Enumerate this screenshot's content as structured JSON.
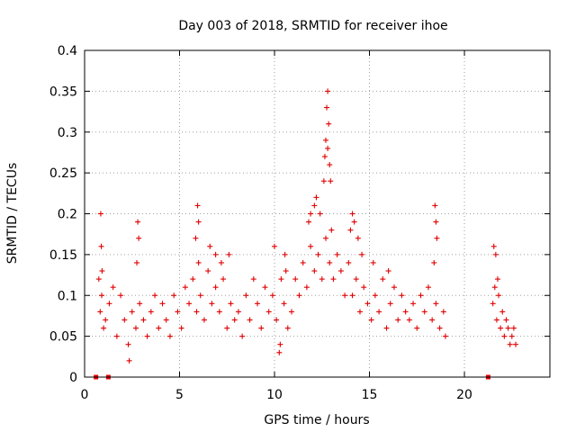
{
  "chart_data": {
    "type": "scatter",
    "title": "Day 003 of 2018, SRMTID for receiver ihoe",
    "xlabel": "GPS time / hours",
    "ylabel": "SRMTID / TECUs",
    "xlim": [
      0,
      24.5
    ],
    "ylim": [
      0,
      0.4
    ],
    "grid": true,
    "marker": "plus",
    "color": "#e00000",
    "x_ticks": [
      {
        "value": 0,
        "label": "0"
      },
      {
        "value": 5,
        "label": "5"
      },
      {
        "value": 10,
        "label": "10"
      },
      {
        "value": 15,
        "label": "15"
      },
      {
        "value": 20,
        "label": "20"
      }
    ],
    "y_ticks": [
      {
        "value": 0,
        "label": "0"
      },
      {
        "value": 0.05,
        "label": "0.05"
      },
      {
        "value": 0.1,
        "label": "0.1"
      },
      {
        "value": 0.15,
        "label": "0.15"
      },
      {
        "value": 0.2,
        "label": "0.2"
      },
      {
        "value": 0.25,
        "label": "0.25"
      },
      {
        "value": 0.3,
        "label": "0.3"
      },
      {
        "value": 0.35,
        "label": "0.35"
      },
      {
        "value": 0.4,
        "label": "0.4"
      }
    ],
    "series": [
      {
        "name": "SRMTID",
        "x": [
          0.6,
          1.25,
          21.25,
          0.75,
          0.82,
          0.9,
          1.0,
          1.1,
          1.3,
          1.5,
          1.7,
          1.9,
          2.1,
          2.3,
          2.5,
          2.7,
          2.9,
          3.1,
          3.3,
          3.5,
          3.7,
          3.9,
          0.85,
          0.88,
          0.92,
          2.35,
          2.8,
          2.85,
          2.75,
          4.1,
          4.3,
          4.5,
          4.7,
          4.9,
          5.1,
          5.3,
          5.5,
          5.7,
          5.9,
          6.0,
          6.1,
          6.3,
          6.5,
          6.7,
          6.9,
          7.1,
          7.3,
          7.5,
          7.7,
          7.9,
          5.95,
          6.0,
          5.85,
          6.6,
          6.9,
          7.2,
          7.6,
          8.1,
          8.3,
          8.5,
          8.7,
          8.9,
          9.1,
          9.3,
          9.5,
          9.7,
          9.9,
          10.1,
          10.3,
          10.5,
          10.7,
          10.9,
          10.0,
          10.25,
          10.35,
          10.55,
          10.6,
          11.1,
          11.3,
          11.5,
          11.7,
          11.9,
          12.1,
          12.3,
          12.5,
          12.7,
          12.9,
          13.1,
          13.3,
          13.5,
          13.7,
          13.9,
          11.8,
          11.9,
          12.1,
          12.2,
          12.4,
          12.6,
          12.65,
          12.7,
          12.75,
          12.8,
          12.85,
          12.9,
          12.95,
          13.0,
          12.8,
          14.1,
          14.3,
          14.5,
          14.7,
          14.9,
          15.1,
          15.3,
          15.5,
          15.7,
          15.9,
          16.1,
          16.3,
          16.5,
          16.7,
          16.9,
          14.0,
          14.1,
          14.2,
          14.4,
          14.6,
          15.2,
          16.0,
          17.1,
          17.3,
          17.5,
          17.7,
          17.9,
          18.1,
          18.3,
          18.5,
          18.7,
          18.9,
          19.0,
          18.45,
          18.5,
          18.55,
          18.4,
          21.5,
          21.6,
          21.7,
          21.8,
          21.9,
          22.0,
          22.1,
          22.2,
          22.3,
          22.4,
          22.5,
          22.6,
          22.7,
          21.55,
          21.65,
          21.75
        ],
        "y": [
          0.0,
          0.0,
          0.0,
          0.12,
          0.08,
          0.1,
          0.06,
          0.07,
          0.09,
          0.11,
          0.05,
          0.1,
          0.07,
          0.04,
          0.08,
          0.06,
          0.09,
          0.07,
          0.05,
          0.08,
          0.1,
          0.06,
          0.2,
          0.16,
          0.13,
          0.02,
          0.19,
          0.17,
          0.14,
          0.09,
          0.07,
          0.05,
          0.1,
          0.08,
          0.06,
          0.11,
          0.09,
          0.12,
          0.08,
          0.14,
          0.1,
          0.07,
          0.13,
          0.09,
          0.11,
          0.08,
          0.12,
          0.06,
          0.09,
          0.07,
          0.21,
          0.19,
          0.17,
          0.16,
          0.15,
          0.14,
          0.15,
          0.08,
          0.05,
          0.1,
          0.07,
          0.12,
          0.09,
          0.06,
          0.11,
          0.08,
          0.1,
          0.07,
          0.04,
          0.09,
          0.06,
          0.08,
          0.16,
          0.03,
          0.12,
          0.15,
          0.13,
          0.12,
          0.1,
          0.14,
          0.11,
          0.16,
          0.13,
          0.15,
          0.12,
          0.17,
          0.14,
          0.12,
          0.15,
          0.13,
          0.1,
          0.14,
          0.19,
          0.2,
          0.21,
          0.22,
          0.2,
          0.24,
          0.27,
          0.29,
          0.33,
          0.35,
          0.31,
          0.26,
          0.24,
          0.18,
          0.28,
          0.1,
          0.12,
          0.08,
          0.11,
          0.09,
          0.07,
          0.1,
          0.08,
          0.12,
          0.06,
          0.09,
          0.11,
          0.07,
          0.1,
          0.08,
          0.18,
          0.2,
          0.19,
          0.17,
          0.15,
          0.14,
          0.13,
          0.07,
          0.09,
          0.06,
          0.1,
          0.08,
          0.11,
          0.07,
          0.09,
          0.06,
          0.08,
          0.05,
          0.21,
          0.19,
          0.17,
          0.14,
          0.09,
          0.11,
          0.07,
          0.1,
          0.06,
          0.08,
          0.05,
          0.07,
          0.06,
          0.04,
          0.05,
          0.06,
          0.04,
          0.16,
          0.15,
          0.12
        ]
      }
    ]
  }
}
